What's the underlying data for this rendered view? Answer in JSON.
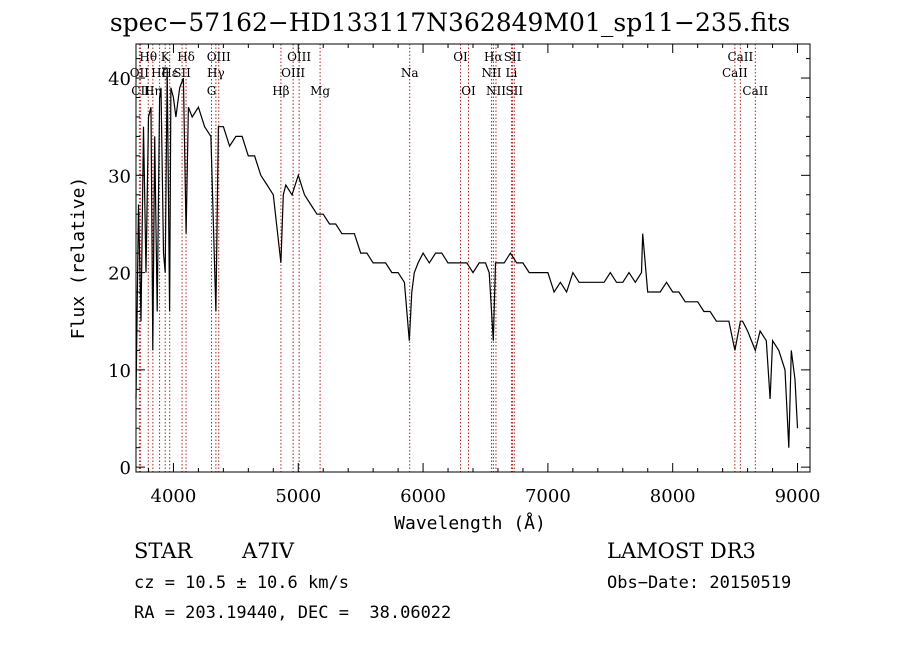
{
  "chart_data": {
    "type": "line",
    "title": "spec−57162−HD133117N362849M01_sp11−235.fits",
    "xlabel": "Wavelength (Å)",
    "ylabel": "Flux (relative)",
    "xlim": [
      3700,
      9100
    ],
    "ylim": [
      -0.5,
      43.5
    ],
    "xticks": [
      4000,
      5000,
      6000,
      7000,
      8000,
      9000
    ],
    "xtick_labels": [
      "4000",
      "5000",
      "6000",
      "7000",
      "8000",
      "9000"
    ],
    "yticks": [
      0,
      10,
      20,
      30,
      40
    ],
    "ytick_labels": [
      "0",
      "10",
      "20",
      "30",
      "40"
    ],
    "series": [
      {
        "name": "flux",
        "x": [
          3700,
          3720,
          3740,
          3760,
          3780,
          3800,
          3820,
          3835,
          3850,
          3870,
          3889,
          3900,
          3920,
          3934,
          3950,
          3969,
          3980,
          4000,
          4020,
          4050,
          4080,
          4101,
          4120,
          4150,
          4200,
          4250,
          4300,
          4340,
          4360,
          4400,
          4450,
          4500,
          4550,
          4600,
          4650,
          4700,
          4750,
          4800,
          4861,
          4880,
          4900,
          4950,
          5000,
          5050,
          5100,
          5150,
          5200,
          5250,
          5300,
          5350,
          5400,
          5450,
          5500,
          5550,
          5600,
          5650,
          5700,
          5750,
          5800,
          5850,
          5890,
          5910,
          5930,
          5960,
          6000,
          6050,
          6100,
          6150,
          6200,
          6250,
          6300,
          6320,
          6350,
          6400,
          6450,
          6500,
          6530,
          6563,
          6580,
          6600,
          6650,
          6700,
          6750,
          6800,
          6850,
          6900,
          6950,
          7000,
          7050,
          7100,
          7150,
          7200,
          7250,
          7300,
          7350,
          7400,
          7450,
          7500,
          7550,
          7600,
          7650,
          7700,
          7750,
          7760,
          7800,
          7850,
          7900,
          7950,
          8000,
          8050,
          8100,
          8150,
          8200,
          8250,
          8300,
          8350,
          8400,
          8450,
          8498,
          8542,
          8560,
          8600,
          8662,
          8700,
          8750,
          8780,
          8800,
          8850,
          8900,
          8930,
          8950,
          8980,
          9000
        ],
        "y": [
          7,
          27,
          15,
          35,
          20,
          36,
          37,
          12,
          34,
          16,
          38,
          39,
          22,
          20,
          41,
          16,
          39,
          38,
          36,
          39,
          40,
          24,
          37,
          36,
          37,
          35,
          34,
          16,
          35,
          35,
          33,
          34,
          34,
          32,
          32,
          30,
          29,
          28,
          21,
          28,
          29,
          28,
          30,
          28,
          27,
          26,
          26,
          25,
          25,
          24,
          24,
          24,
          22,
          22,
          21,
          21,
          21,
          20,
          20,
          19,
          13,
          18,
          20,
          21,
          22,
          21,
          22,
          22,
          21,
          21,
          21,
          21,
          21,
          20,
          21,
          21,
          20,
          13,
          21,
          21,
          21,
          22,
          21,
          21,
          20,
          20,
          20,
          20,
          18,
          19,
          18,
          20,
          19,
          19,
          19,
          19,
          19,
          20,
          19,
          19,
          20,
          19,
          20,
          24,
          18,
          18,
          18,
          19,
          18,
          18,
          17,
          17,
          17,
          16,
          16,
          15,
          15,
          15,
          12,
          15,
          15,
          14,
          12,
          14,
          13,
          7,
          13,
          12,
          10,
          2,
          12,
          9,
          4
        ]
      }
    ],
    "lines": [
      {
        "label": "Hθ",
        "wl": 3798,
        "row": 0
      },
      {
        "label": "OII",
        "wl": 3727,
        "row": 1
      },
      {
        "label": "CII",
        "wl": 3737,
        "row": 2
      },
      {
        "label": "Hη",
        "wl": 3835,
        "row": 2
      },
      {
        "label": "Hζ",
        "wl": 3889,
        "row": 1
      },
      {
        "label": "K",
        "wl": 3934,
        "row": 0
      },
      {
        "label": "Hε",
        "wl": 3970,
        "row": 1
      },
      {
        "label": "SII",
        "wl": 4069,
        "row": 1
      },
      {
        "label": "Hδ",
        "wl": 4101,
        "row": 0
      },
      {
        "label": "OIII",
        "wl": 4363,
        "row": 0
      },
      {
        "label": "Hγ",
        "wl": 4340,
        "row": 1
      },
      {
        "label": "G",
        "wl": 4305,
        "row": 2
      },
      {
        "label": "Hβ",
        "wl": 4861,
        "row": 2
      },
      {
        "label": "OIII",
        "wl": 5007,
        "row": 0
      },
      {
        "label": "OIII",
        "wl": 4959,
        "row": 1
      },
      {
        "label": "Mg",
        "wl": 5175,
        "row": 2
      },
      {
        "label": "Na",
        "wl": 5893,
        "row": 1
      },
      {
        "label": "OI",
        "wl": 6300,
        "row": 0
      },
      {
        "label": "OI",
        "wl": 6364,
        "row": 2
      },
      {
        "label": "Hα",
        "wl": 6563,
        "row": 0
      },
      {
        "label": "SII",
        "wl": 6717,
        "row": 0
      },
      {
        "label": "NII",
        "wl": 6548,
        "row": 1
      },
      {
        "label": "Li",
        "wl": 6708,
        "row": 1
      },
      {
        "label": "NII",
        "wl": 6584,
        "row": 2
      },
      {
        "label": "SII",
        "wl": 6731,
        "row": 2
      },
      {
        "label": "CaII",
        "wl": 8542,
        "row": 0
      },
      {
        "label": "CaII",
        "wl": 8498,
        "row": 1
      },
      {
        "label": "CaII",
        "wl": 8662,
        "row": 2
      }
    ]
  },
  "info": {
    "class": "STAR",
    "subclass": "A7IV",
    "survey": "LAMOST DR3",
    "cz": "cz = 10.5 ± 10.6 km/s",
    "obs_date": "Obs−Date: 20150519",
    "radec": "RA = 203.19440, DEC =  38.06022"
  }
}
